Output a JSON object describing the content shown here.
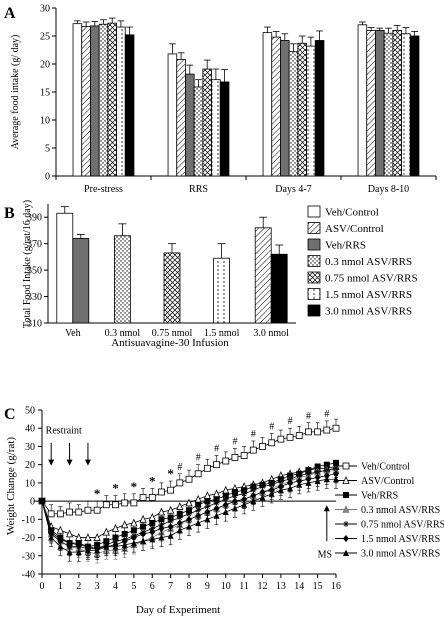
{
  "chart_data": [
    {
      "panel_label": "A",
      "type": "bar",
      "ylabel": "Average food intake (g/ day)",
      "ylim": [
        0,
        30
      ],
      "yticks": [
        0,
        5,
        10,
        15,
        20,
        25,
        30
      ],
      "categories": [
        "Pre-stress",
        "RRS",
        "Days 4-7",
        "Days 8-10"
      ],
      "series": [
        {
          "name": "Veh/Control",
          "values": [
            27.2,
            21.8,
            25.6,
            27.0
          ],
          "errors": [
            0.5,
            1.8,
            1.0,
            0.5
          ]
        },
        {
          "name": "ASV/Control",
          "values": [
            26.7,
            20.8,
            24.8,
            26.0
          ],
          "errors": [
            0.8,
            1.2,
            1.0,
            0.5
          ]
        },
        {
          "name": "Veh/RRS",
          "values": [
            26.8,
            18.2,
            24.2,
            26.0
          ],
          "errors": [
            0.8,
            1.6,
            1.2,
            0.4
          ]
        },
        {
          "name": "0.3 nmol ASV/RRS",
          "values": [
            27.1,
            15.9,
            22.2,
            25.5
          ],
          "errors": [
            0.8,
            1.3,
            1.4,
            0.9
          ]
        },
        {
          "name": "0.75 nmol ASV/RRS",
          "values": [
            27.3,
            19.1,
            23.7,
            26.0
          ],
          "errors": [
            0.9,
            1.6,
            1.3,
            0.9
          ]
        },
        {
          "name": "1.5 nmol ASV/RRS",
          "values": [
            26.6,
            17.2,
            23.2,
            25.4
          ],
          "errors": [
            1.1,
            1.9,
            1.6,
            1.1
          ]
        },
        {
          "name": "3.0 nmol ASV/RRS",
          "values": [
            25.2,
            16.8,
            24.2,
            25.0
          ],
          "errors": [
            1.4,
            2.2,
            1.7,
            0.8
          ]
        }
      ]
    },
    {
      "panel_label": "B",
      "type": "bar",
      "ylabel": "Total Food Intake (g/rat/16 day)",
      "xlabel": "Antisuavagine-30 Infusion",
      "ylim": [
        310,
        400
      ],
      "yticks": [
        310,
        330,
        350,
        370,
        390
      ],
      "categories": [
        "Veh",
        "0.3 nmol",
        "0.75 nmol",
        "1.5 nmol",
        "3.0 nmol"
      ],
      "bars": [
        {
          "category": "Veh",
          "series": "Veh/Control",
          "value": 393,
          "error": 5
        },
        {
          "category": "Veh",
          "series": "Veh/RRS",
          "value": 374,
          "error": 3
        },
        {
          "category": "0.3 nmol",
          "series": "0.3 nmol ASV/RRS",
          "value": 376,
          "error": 9
        },
        {
          "category": "0.75 nmol",
          "series": "0.75 nmol ASV/RRS",
          "value": 363,
          "error": 7
        },
        {
          "category": "1.5 nmol",
          "series": "1.5 nmol ASV/RRS",
          "value": 359,
          "error": 11
        },
        {
          "category": "3.0 nmol",
          "series": "ASV/Control",
          "value": 382,
          "error": 8
        },
        {
          "category": "3.0 nmol",
          "series": "3.0 nmol ASV/RRS",
          "value": 362,
          "error": 7
        }
      ],
      "legend": [
        "Veh/Control",
        "ASV/Control",
        "Veh/RRS",
        "0.3 nmol ASV/RRS",
        "0.75 nmol ASV/RRS",
        "1.5 nmol ASV/RRS",
        "3.0 nmol ASV/RRS"
      ]
    },
    {
      "panel_label": "C",
      "type": "line",
      "ylabel": "Weight Change (g/rat)",
      "xlabel": "Day of Experiment",
      "ylim": [
        -40,
        50
      ],
      "yticks": [
        -40,
        -30,
        -20,
        -10,
        0,
        10,
        20,
        30,
        40,
        50
      ],
      "x": [
        0,
        0.5,
        1,
        1.5,
        2,
        2.5,
        3,
        3.5,
        4,
        4.5,
        5,
        5.5,
        6,
        6.5,
        7,
        7.5,
        8,
        8.5,
        9,
        9.5,
        10,
        10.5,
        11,
        11.5,
        12,
        12.5,
        13,
        13.5,
        14,
        14.5,
        15,
        15.5,
        16
      ],
      "xticks": [
        0,
        1,
        2,
        3,
        4,
        5,
        6,
        7,
        8,
        9,
        10,
        11,
        12,
        13,
        14,
        15,
        16
      ],
      "series": [
        {
          "name": "Veh/Control",
          "marker": "open-square",
          "values": [
            0,
            -7,
            -7,
            -6,
            -6,
            -5,
            -5,
            -2,
            -2,
            -1,
            -1,
            2,
            2,
            5,
            6,
            10,
            12,
            15,
            18,
            20,
            22,
            24,
            25,
            28,
            30,
            32,
            34,
            35,
            36,
            38,
            38,
            39,
            40
          ],
          "errors": [
            0,
            5,
            4,
            5,
            4,
            5,
            5,
            5,
            5,
            5,
            5,
            5,
            5,
            5,
            5,
            5,
            5,
            5,
            5,
            5,
            5,
            5,
            5,
            5,
            5,
            5,
            5,
            5,
            5,
            5,
            5,
            5,
            5
          ]
        },
        {
          "name": "ASV/Control",
          "marker": "open-triangle",
          "values": [
            0,
            -14,
            -16,
            -18,
            -20,
            -20,
            -20,
            -17,
            -15,
            -13,
            -12,
            -10,
            -9,
            -6,
            -5,
            -3,
            -1,
            1,
            3,
            4,
            6,
            7,
            8,
            9,
            10,
            12,
            14,
            15,
            16,
            17,
            18,
            18,
            19
          ],
          "errors": [
            0,
            5,
            5,
            5,
            5,
            5,
            5,
            5,
            5,
            5,
            5,
            5,
            5,
            5,
            5,
            5,
            5,
            5,
            5,
            5,
            5,
            5,
            5,
            5,
            5,
            5,
            5,
            5,
            5,
            5,
            5,
            5,
            5
          ]
        },
        {
          "name": "Veh/RRS",
          "marker": "filled-square",
          "values": [
            0,
            -16,
            -20,
            -23,
            -23,
            -25,
            -24,
            -22,
            -20,
            -18,
            -16,
            -14,
            -12,
            -10,
            -9,
            -7,
            -5,
            -2,
            0,
            1,
            3,
            5,
            6,
            8,
            9,
            10,
            12,
            14,
            15,
            17,
            19,
            20,
            21
          ],
          "errors": [
            0,
            5,
            5,
            5,
            5,
            5,
            5,
            5,
            5,
            5,
            5,
            5,
            5,
            5,
            5,
            5,
            5,
            5,
            5,
            5,
            5,
            5,
            5,
            5,
            5,
            5,
            5,
            5,
            5,
            5,
            5,
            5,
            5
          ]
        },
        {
          "name": "0.3 nmol ASV/RRS",
          "marker": "gray-triangle",
          "values": [
            0,
            -18,
            -22,
            -25,
            -26,
            -28,
            -29,
            -27,
            -27,
            -26,
            -24,
            -22,
            -20,
            -17,
            -15,
            -13,
            -10,
            -8,
            -6,
            -4,
            -2,
            0,
            1,
            3,
            5,
            7,
            9,
            11,
            13,
            14,
            16,
            17,
            17
          ],
          "errors": [
            0,
            5,
            5,
            5,
            5,
            5,
            5,
            5,
            5,
            5,
            5,
            5,
            5,
            5,
            5,
            5,
            5,
            5,
            5,
            5,
            5,
            5,
            5,
            5,
            5,
            5,
            5,
            5,
            5,
            5,
            5,
            5,
            5
          ]
        },
        {
          "name": "0.75 nmol ASV/RRS",
          "marker": "asterisk",
          "values": [
            0,
            -17,
            -21,
            -23,
            -24,
            -25,
            -26,
            -24,
            -22,
            -21,
            -19,
            -17,
            -15,
            -13,
            -11,
            -9,
            -7,
            -5,
            -3,
            -1,
            1,
            3,
            4,
            6,
            8,
            9,
            11,
            12,
            14,
            15,
            16,
            17,
            18
          ],
          "errors": [
            0,
            5,
            5,
            5,
            5,
            5,
            5,
            5,
            5,
            5,
            5,
            5,
            5,
            5,
            5,
            5,
            5,
            5,
            5,
            5,
            5,
            5,
            5,
            5,
            5,
            5,
            5,
            5,
            5,
            5,
            5,
            5,
            5
          ]
        },
        {
          "name": "1.5 nmol ASV/RRS",
          "marker": "filled-diamond",
          "values": [
            0,
            -18,
            -22,
            -25,
            -25,
            -26,
            -26,
            -25,
            -24,
            -22,
            -20,
            -18,
            -17,
            -15,
            -14,
            -12,
            -10,
            -8,
            -6,
            -4,
            -2,
            0,
            1,
            3,
            5,
            6,
            8,
            10,
            11,
            12,
            13,
            14,
            15
          ],
          "errors": [
            0,
            5,
            5,
            5,
            5,
            5,
            5,
            5,
            5,
            5,
            5,
            5,
            5,
            5,
            5,
            5,
            5,
            5,
            5,
            5,
            5,
            5,
            5,
            5,
            5,
            5,
            5,
            5,
            5,
            5,
            5,
            5,
            5
          ]
        },
        {
          "name": "3.0 nmol ASV/RRS",
          "marker": "filled-triangle",
          "values": [
            0,
            -20,
            -25,
            -28,
            -28,
            -27,
            -27,
            -25,
            -25,
            -24,
            -23,
            -22,
            -21,
            -20,
            -19,
            -16,
            -14,
            -12,
            -10,
            -8,
            -6,
            -4,
            -2,
            0,
            2,
            4,
            6,
            7,
            9,
            10,
            11,
            12,
            12
          ],
          "errors": [
            0,
            5,
            5,
            5,
            5,
            5,
            5,
            5,
            5,
            5,
            5,
            5,
            5,
            5,
            5,
            5,
            5,
            5,
            5,
            5,
            5,
            5,
            5,
            5,
            5,
            5,
            5,
            5,
            5,
            5,
            5,
            5,
            5
          ]
        }
      ],
      "annotations": [
        {
          "text": "Restraint",
          "x": 0.2,
          "y": 37
        },
        {
          "text": "MS",
          "x": 15,
          "y": -31
        }
      ],
      "arrows_down_at_days": [
        0.5,
        1.5,
        2.5
      ],
      "arrow_up_at_day": 15.5,
      "star_days": [
        3,
        4,
        5,
        6,
        7
      ],
      "hash_days": [
        7.5,
        8.5,
        9.5,
        10.5,
        11.5,
        12.5,
        13.5,
        14.5,
        15.5
      ],
      "star_symbol": "*",
      "hash_symbol": "#"
    }
  ]
}
